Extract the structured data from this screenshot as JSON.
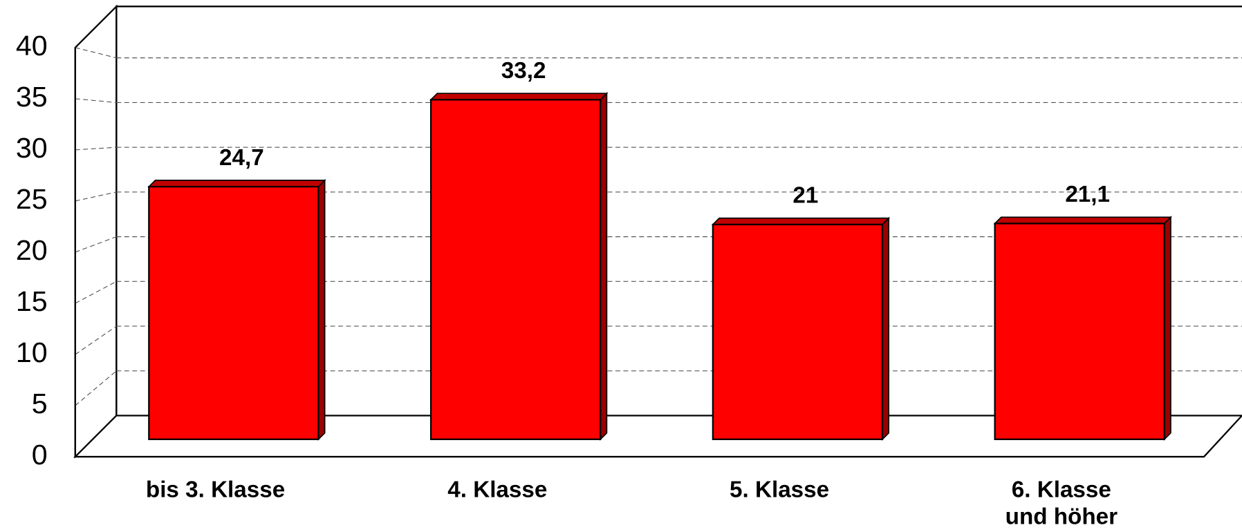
{
  "chart_data": {
    "type": "bar3d",
    "categories": [
      "bis 3. Klasse",
      "4. Klasse",
      "5. Klasse",
      "6. Klasse und höher"
    ],
    "values": [
      24.7,
      33.2,
      21,
      21.1
    ],
    "value_labels": [
      "24,7",
      "33,2",
      "21",
      "21,1"
    ],
    "color": "#ff0000",
    "ylim": [
      0,
      40
    ],
    "yticks": [
      0,
      5,
      10,
      15,
      20,
      25,
      30,
      35,
      40
    ],
    "grid": true
  }
}
